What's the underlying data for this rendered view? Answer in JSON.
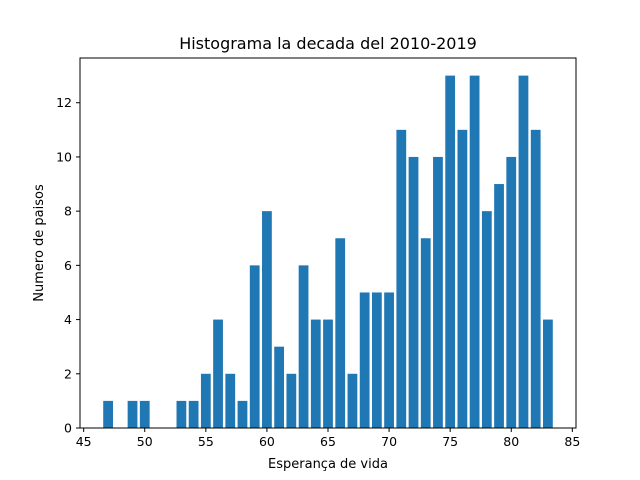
{
  "chart_data": {
    "type": "bar",
    "title": "Histograma la decada del 2010-2019",
    "xlabel": "Esperança de vida",
    "ylabel": "Numero de paisos",
    "xlim": [
      44.7,
      85.3
    ],
    "ylim": [
      0,
      13.65
    ],
    "xticks": [
      45,
      50,
      55,
      60,
      65,
      70,
      75,
      80,
      85
    ],
    "yticks": [
      0,
      2,
      4,
      6,
      8,
      10,
      12
    ],
    "bar_width": 0.8,
    "color": "#1f77b4",
    "grid": false,
    "x": [
      47,
      49,
      50,
      53,
      54,
      55,
      56,
      57,
      58,
      59,
      60,
      61,
      62,
      63,
      64,
      65,
      66,
      67,
      68,
      69,
      70,
      71,
      72,
      73,
      74,
      75,
      76,
      77,
      78,
      79,
      80,
      81,
      82,
      83
    ],
    "values": [
      1,
      1,
      1,
      1,
      1,
      2,
      4,
      2,
      1,
      6,
      8,
      3,
      2,
      6,
      4,
      4,
      7,
      2,
      5,
      5,
      5,
      11,
      10,
      7,
      10,
      13,
      11,
      13,
      8,
      9,
      10,
      13,
      11,
      4
    ]
  }
}
